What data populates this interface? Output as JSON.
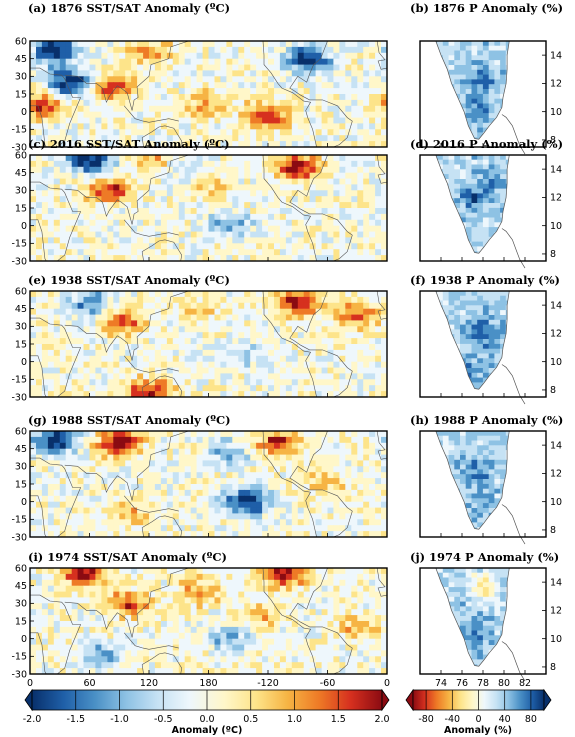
{
  "colors": {
    "palette": [
      "#08306b",
      "#1f5fa8",
      "#4a90c6",
      "#8ec2e4",
      "#c6e2f4",
      "#eef7fc",
      "#fff7c9",
      "#fde48a",
      "#f6b444",
      "#ee7a26",
      "#d6301f",
      "#8b0b12"
    ],
    "land_outline": "#555555"
  },
  "chart_data": [
    {
      "type": "heatmap",
      "panel": "(a)",
      "title": "(a) 1876 SST/SAT Anomaly (ºC)",
      "map": "tropical-band",
      "xlim": [
        0,
        360
      ],
      "ylim": [
        -30,
        60
      ],
      "lon_labels": [
        "0",
        "60",
        "120",
        "180",
        "-120",
        "-60",
        "0"
      ],
      "lat_labels": [
        "-30",
        "-15",
        "0",
        "15",
        "30",
        "45",
        "60"
      ],
      "features": [
        {
          "lon": 25,
          "lat": 52,
          "anom": -2.0
        },
        {
          "lon": 40,
          "lat": 25,
          "anom": -2.0
        },
        {
          "lon": 15,
          "lat": 5,
          "anom": 1.6
        },
        {
          "lon": 85,
          "lat": 22,
          "anom": 1.5
        },
        {
          "lon": 120,
          "lat": 50,
          "anom": 1.0
        },
        {
          "lon": 280,
          "lat": 45,
          "anom": -2.0
        },
        {
          "lon": 240,
          "lat": -3,
          "anom": 1.5
        },
        {
          "lon": 175,
          "lat": 5,
          "anom": 0.9
        }
      ]
    },
    {
      "type": "heatmap",
      "panel": "(b)",
      "title": "(b) 1876 P Anomaly (%)",
      "map": "india",
      "xlim": [
        72,
        84
      ],
      "ylim": [
        7.5,
        15
      ],
      "lat_labels": [
        "8",
        "10",
        "12",
        "14"
      ],
      "features": [
        {
          "lon": 78,
          "lat": 12,
          "anom": 65
        },
        {
          "lon": 77.5,
          "lat": 10,
          "anom": 55
        }
      ]
    },
    {
      "type": "heatmap",
      "panel": "(c)",
      "title": "(c) 2016 SST/SAT Anomaly (ºC)",
      "map": "tropical-band",
      "xlim": [
        0,
        360
      ],
      "ylim": [
        -30,
        60
      ],
      "lon_labels": [
        "0",
        "60",
        "120",
        "180",
        "-120",
        "-60",
        "0"
      ],
      "lat_labels": [
        "-30",
        "-15",
        "0",
        "15",
        "30",
        "45",
        "60"
      ],
      "features": [
        {
          "lon": 60,
          "lat": 55,
          "anom": -2.0
        },
        {
          "lon": 120,
          "lat": 55,
          "anom": 0.9
        },
        {
          "lon": 80,
          "lat": 30,
          "anom": 1.5
        },
        {
          "lon": 270,
          "lat": 50,
          "anom": 1.9
        },
        {
          "lon": 200,
          "lat": 0,
          "anom": -1.0
        },
        {
          "lon": 180,
          "lat": 35,
          "anom": 0.7
        },
        {
          "lon": 155,
          "lat": 45,
          "anom": -0.6
        }
      ]
    },
    {
      "type": "heatmap",
      "panel": "(d)",
      "title": "(d) 2016 P Anomaly (%)",
      "map": "india",
      "xlim": [
        72,
        84
      ],
      "ylim": [
        7.5,
        15
      ],
      "lat_labels": [
        "8",
        "10",
        "12",
        "14"
      ],
      "features": [
        {
          "lon": 77,
          "lat": 12,
          "anom": 70
        },
        {
          "lon": 79,
          "lat": 13,
          "anom": 50
        }
      ]
    },
    {
      "type": "heatmap",
      "panel": "(e)",
      "title": "(e) 1938 SST/SAT Anomaly (ºC)",
      "map": "tropical-band",
      "xlim": [
        0,
        360
      ],
      "ylim": [
        -30,
        60
      ],
      "lon_labels": [
        "0",
        "60",
        "120",
        "180",
        "-120",
        "-60",
        "0"
      ],
      "lat_labels": [
        "-30",
        "-15",
        "0",
        "15",
        "30",
        "45",
        "60"
      ],
      "features": [
        {
          "lon": 270,
          "lat": 50,
          "anom": 1.9
        },
        {
          "lon": 330,
          "lat": 40,
          "anom": 1.2
        },
        {
          "lon": 60,
          "lat": 50,
          "anom": -1.2
        },
        {
          "lon": 95,
          "lat": 35,
          "anom": 1.4
        },
        {
          "lon": 120,
          "lat": -27,
          "anom": 1.9
        },
        {
          "lon": 210,
          "lat": 5,
          "anom": -0.7
        },
        {
          "lon": 170,
          "lat": 45,
          "anom": 0.5
        }
      ]
    },
    {
      "type": "heatmap",
      "panel": "(f)",
      "title": "(f) 1938 P Anomaly (%)",
      "map": "india",
      "xlim": [
        72,
        84
      ],
      "ylim": [
        7.5,
        15
      ],
      "lat_labels": [
        "8",
        "10",
        "12",
        "14"
      ],
      "features": [
        {
          "lon": 78,
          "lat": 12,
          "anom": 75
        },
        {
          "lon": 77,
          "lat": 9.5,
          "anom": 55
        }
      ]
    },
    {
      "type": "heatmap",
      "panel": "(g)",
      "title": "(g) 1988 SST/SAT Anomaly (ºC)",
      "map": "tropical-band",
      "xlim": [
        0,
        360
      ],
      "ylim": [
        -30,
        60
      ],
      "lon_labels": [
        "0",
        "60",
        "120",
        "180",
        "-120",
        "-60",
        "0"
      ],
      "lat_labels": [
        "-30",
        "-15",
        "0",
        "15",
        "30",
        "45",
        "60"
      ],
      "features": [
        {
          "lon": 90,
          "lat": 50,
          "anom": 2.0
        },
        {
          "lon": 25,
          "lat": 52,
          "anom": -2.0
        },
        {
          "lon": 220,
          "lat": 0,
          "anom": -2.0
        },
        {
          "lon": 200,
          "lat": 40,
          "anom": -1.0
        },
        {
          "lon": 250,
          "lat": 50,
          "anom": 1.6
        },
        {
          "lon": 100,
          "lat": -10,
          "anom": 0.8
        },
        {
          "lon": 300,
          "lat": 15,
          "anom": 0.7
        }
      ]
    },
    {
      "type": "heatmap",
      "panel": "(h)",
      "title": "(h) 1988 P Anomaly (%)",
      "map": "india",
      "xlim": [
        72,
        84
      ],
      "ylim": [
        7.5,
        15
      ],
      "lat_labels": [
        "8",
        "10",
        "12",
        "14"
      ],
      "features": [
        {
          "lon": 77.5,
          "lat": 12,
          "anom": 70
        },
        {
          "lon": 78,
          "lat": 9.5,
          "anom": 45
        }
      ]
    },
    {
      "type": "heatmap",
      "panel": "(i)",
      "title": "(i) 1974 SST/SAT Anomaly (ºC)",
      "map": "tropical-band",
      "xlim": [
        0,
        360
      ],
      "ylim": [
        -30,
        60
      ],
      "lon_labels": [
        "0",
        "60",
        "120",
        "180",
        "-120",
        "-60",
        "0"
      ],
      "lat_labels": [
        "-30",
        "-15",
        "0",
        "15",
        "30",
        "45",
        "60"
      ],
      "features": [
        {
          "lon": 55,
          "lat": 55,
          "anom": 1.9
        },
        {
          "lon": 255,
          "lat": 55,
          "anom": 1.9
        },
        {
          "lon": 100,
          "lat": 30,
          "anom": 1.3
        },
        {
          "lon": 200,
          "lat": 0,
          "anom": -1.0
        },
        {
          "lon": 170,
          "lat": 40,
          "anom": 1.0
        },
        {
          "lon": 230,
          "lat": 20,
          "anom": 0.8
        },
        {
          "lon": 75,
          "lat": -15,
          "anom": -1.0
        },
        {
          "lon": 330,
          "lat": 10,
          "anom": 0.8
        }
      ]
    },
    {
      "type": "heatmap",
      "panel": "(j)",
      "title": "(j) 1974 P Anomaly (%)",
      "map": "india",
      "xlim": [
        72,
        84
      ],
      "ylim": [
        7.5,
        15
      ],
      "lat_labels": [
        "8",
        "10",
        "12",
        "14"
      ],
      "features": [
        {
          "lon": 78,
          "lat": 13.5,
          "anom": -20
        },
        {
          "lon": 77.5,
          "lat": 10.5,
          "anom": 60
        },
        {
          "lon": 76.5,
          "lat": 12.5,
          "anom": 40
        }
      ]
    }
  ],
  "colorbar_sst": {
    "label": "Anomaly (ºC)",
    "ticks": [
      "-2.0",
      "-1.5",
      "-1.0",
      "-0.5",
      "0.0",
      "0.5",
      "1.0",
      "1.5",
      "2.0"
    ],
    "range": [
      -2,
      2
    ]
  },
  "colorbar_p": {
    "label": "Anomaly (%)",
    "ticks": [
      "-80",
      "-40",
      "0",
      "40",
      "80"
    ],
    "range": [
      -100,
      100
    ]
  },
  "india_lon_labels": [
    "74",
    "76",
    "78",
    "80",
    "82"
  ]
}
